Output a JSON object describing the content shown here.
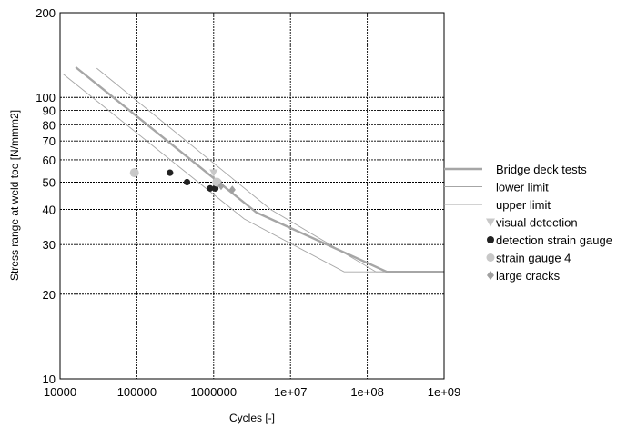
{
  "chart_data": {
    "type": "scatter",
    "title": "",
    "xlabel": "Cycles [-]",
    "ylabel": "Stress range at weld toe [N/mmm2]",
    "x_scale": "log",
    "y_scale": "log",
    "xlim": [
      10000,
      1000000000
    ],
    "ylim": [
      10,
      200
    ],
    "x_ticks": [
      {
        "value": 10000,
        "label": "10000"
      },
      {
        "value": 100000,
        "label": "100000"
      },
      {
        "value": 1000000,
        "label": "1000000"
      },
      {
        "value": 10000000,
        "label": "1e+07"
      },
      {
        "value": 100000000,
        "label": "1e+08"
      },
      {
        "value": 1000000000,
        "label": "1e+09"
      }
    ],
    "y_ticks": [
      {
        "value": 10,
        "label": "10"
      },
      {
        "value": 20,
        "label": "20"
      },
      {
        "value": 30,
        "label": "30"
      },
      {
        "value": 40,
        "label": "40"
      },
      {
        "value": 50,
        "label": "50"
      },
      {
        "value": 60,
        "label": "60"
      },
      {
        "value": 70,
        "label": "70"
      },
      {
        "value": 80,
        "label": "80"
      },
      {
        "value": 90,
        "label": "90"
      },
      {
        "value": 100,
        "label": "100"
      },
      {
        "value": 200,
        "label": "200"
      }
    ],
    "grid": true,
    "legend_position": "right",
    "series": [
      {
        "name": "Bridge deck tests",
        "kind": "line",
        "color": "#a6a6a6",
        "points": [
          [
            16000,
            128
          ],
          [
            3600000,
            39
          ],
          [
            180000000,
            24
          ],
          [
            1000000000,
            24
          ]
        ]
      },
      {
        "name": "lower limit",
        "kind": "line",
        "color": "#a6a6a6",
        "points": [
          [
            11000,
            121
          ],
          [
            2500000,
            37
          ],
          [
            50000000,
            24
          ],
          [
            1000000000,
            24
          ]
        ]
      },
      {
        "name": "upper limit",
        "kind": "line",
        "color": "#a6a6a6",
        "points": [
          [
            30000,
            127
          ],
          [
            5500000,
            40
          ],
          [
            130000000,
            24
          ],
          [
            1000000000,
            24
          ]
        ]
      },
      {
        "name": "visual detection",
        "kind": "marker",
        "marker": "triangle-down",
        "color": "#c8c8c8",
        "points": [
          [
            1000000,
            54
          ]
        ]
      },
      {
        "name": "detection strain gauge",
        "kind": "marker",
        "marker": "circle",
        "color": "#222222",
        "points": [
          [
            270000,
            54
          ],
          [
            450000,
            50
          ],
          [
            900000,
            47.5
          ],
          [
            1050000,
            47.5
          ],
          [
            1150000,
            50
          ]
        ]
      },
      {
        "name": "strain gauge 4",
        "kind": "marker",
        "marker": "circle",
        "color": "#c8c8c8",
        "points": [
          [
            93000,
            54
          ],
          [
            1100000,
            50
          ]
        ]
      },
      {
        "name": "large cracks",
        "kind": "marker",
        "marker": "diamond",
        "color": "#a0a0a0",
        "points": [
          [
            1250000,
            48.5
          ],
          [
            1750000,
            47
          ]
        ]
      }
    ]
  }
}
